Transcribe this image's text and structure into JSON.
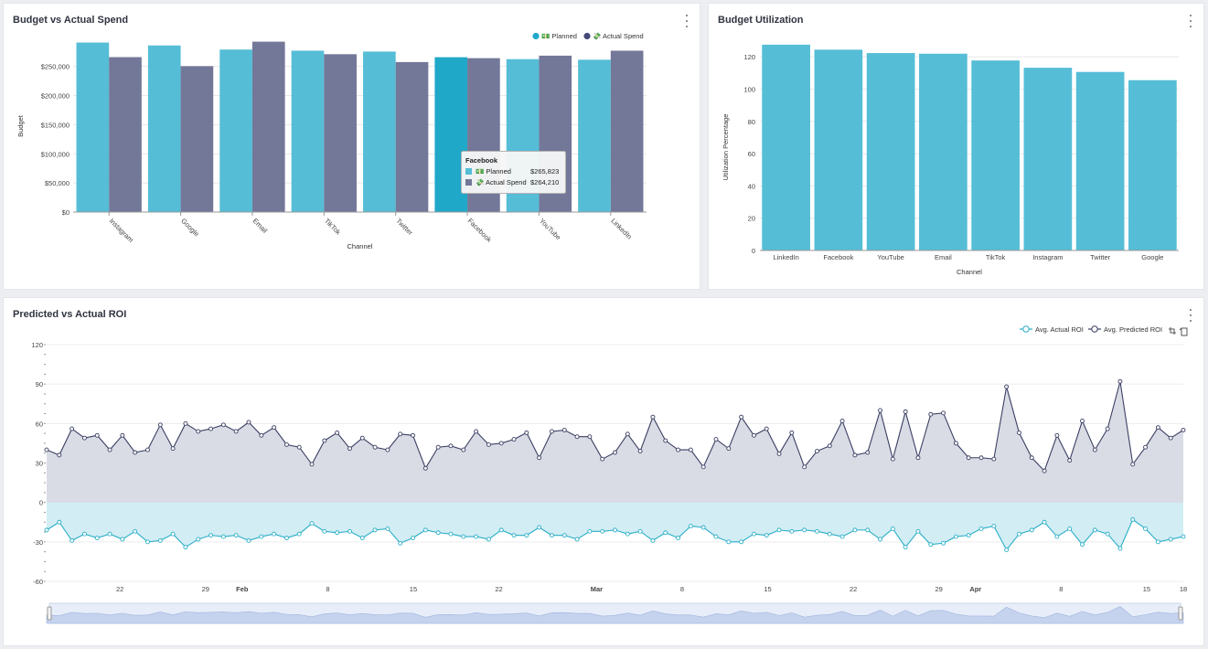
{
  "panels": {
    "budget_vs_actual": {
      "title": "Budget vs Actual Spend"
    },
    "utilization": {
      "title": "Budget Utilization"
    },
    "roi": {
      "title": "Predicted vs Actual ROI"
    }
  },
  "colors": {
    "planned": "#55bdd6",
    "actual": "#737899",
    "planned_highlight": "#20a8c9",
    "predicted_line": "#3b3f63",
    "predicted_fill": "#d8dae4",
    "actual_roi_line": "#2aaec8",
    "actual_roi_fill": "#d2edf3"
  },
  "icons": {
    "planned_legend": "money-icon",
    "actual_legend": "coins-icon",
    "zoom_select": "zoom-select-icon",
    "zoom_reset": "zoom-reset-icon",
    "menu": "kebab-menu-icon"
  },
  "chart_data": [
    {
      "type": "bar",
      "title": "Budget vs Actual Spend",
      "xlabel": "Channel",
      "ylabel": "Budget",
      "categories": [
        "Instagram",
        "Google",
        "Email",
        "TikTok",
        "Twitter",
        "Facebook",
        "YouTube",
        "LinkedIn"
      ],
      "ylim": [
        0,
        295000
      ],
      "yticks": [
        0,
        50000,
        100000,
        150000,
        200000,
        250000
      ],
      "ytick_labels": [
        "$0",
        "$50,000",
        "$100,000",
        "$150,000",
        "$200,000",
        "$250,000"
      ],
      "legend_position": "top-right",
      "series": [
        {
          "name": "Planned",
          "legend_label": "💵 Planned",
          "values": [
            291000,
            286000,
            279000,
            277000,
            275500,
            265823,
            262500,
            261500
          ]
        },
        {
          "name": "Actual Spend",
          "legend_label": "💸 Actual Spend",
          "values": [
            266000,
            250500,
            292500,
            271000,
            257500,
            264210,
            268500,
            277000
          ]
        }
      ],
      "tooltip": {
        "category": "Facebook",
        "rows": [
          {
            "label": "💵 Planned",
            "value": "$265,823"
          },
          {
            "label": "💸 Actual Spend",
            "value": "$264,210"
          }
        ]
      }
    },
    {
      "type": "bar",
      "title": "Budget Utilization",
      "xlabel": "Channel",
      "ylabel": "Utilization Percentage",
      "categories": [
        "LinkedIn",
        "Facebook",
        "YouTube",
        "Email",
        "TikTok",
        "Instagram",
        "Twitter",
        "Google"
      ],
      "values": [
        127.5,
        124.4,
        122.3,
        121.9,
        117.7,
        113.2,
        110.6,
        105.5
      ],
      "ylim": [
        0,
        128
      ],
      "yticks": [
        0,
        20,
        40,
        60,
        80,
        100,
        120
      ],
      "ytick_labels": [
        "0",
        "20",
        "40",
        "60",
        "80",
        "100",
        "120"
      ]
    },
    {
      "type": "area",
      "title": "Predicted vs Actual ROI",
      "ylim": [
        -60,
        120
      ],
      "yticks": [
        -60,
        -30,
        0,
        30,
        60,
        90,
        120
      ],
      "ytick_labels": [
        "-60",
        "-30",
        "0",
        "30",
        "60",
        "90",
        "120"
      ],
      "x_start": "2024-01-16",
      "x_end": "2024-04-18",
      "xticks": [
        {
          "date": "2024-01-22",
          "label": "22",
          "bold": false
        },
        {
          "date": "2024-01-29",
          "label": "29",
          "bold": false
        },
        {
          "date": "2024-02-01",
          "label": "Feb",
          "bold": true
        },
        {
          "date": "2024-02-08",
          "label": "8",
          "bold": false
        },
        {
          "date": "2024-02-15",
          "label": "15",
          "bold": false
        },
        {
          "date": "2024-02-22",
          "label": "22",
          "bold": false
        },
        {
          "date": "2024-03-01",
          "label": "Mar",
          "bold": true
        },
        {
          "date": "2024-03-08",
          "label": "8",
          "bold": false
        },
        {
          "date": "2024-03-15",
          "label": "15",
          "bold": false
        },
        {
          "date": "2024-03-22",
          "label": "22",
          "bold": false
        },
        {
          "date": "2024-03-29",
          "label": "29",
          "bold": false
        },
        {
          "date": "2024-04-01",
          "label": "Apr",
          "bold": true
        },
        {
          "date": "2024-04-08",
          "label": "8",
          "bold": false
        },
        {
          "date": "2024-04-15",
          "label": "15",
          "bold": false
        },
        {
          "date": "2024-04-18",
          "label": "18",
          "bold": false
        }
      ],
      "legend_position": "top-right",
      "series": [
        {
          "name": "Avg. Actual ROI",
          "values": [
            -21,
            -15,
            -29,
            -24,
            -27,
            -24,
            -28,
            -22,
            -30,
            -29,
            -24,
            -34,
            -28,
            -25,
            -26,
            -25,
            -29,
            -26,
            -24,
            -27,
            -24,
            -16,
            -22,
            -23,
            -22,
            -27,
            -21,
            -20,
            -31,
            -27,
            -21,
            -23,
            -24,
            -26,
            -26,
            -28,
            -21,
            -25,
            -25,
            -19,
            -25,
            -25,
            -28,
            -22,
            -22,
            -21,
            -24,
            -22,
            -29,
            -23,
            -27,
            -18,
            -19,
            -26,
            -30,
            -30,
            -24,
            -25,
            -21,
            -22,
            -21,
            -22,
            -24,
            -26,
            -21,
            -21,
            -28,
            -20,
            -34,
            -22,
            -32,
            -31,
            -26,
            -25,
            -20,
            -18,
            -36,
            -24,
            -21,
            -15,
            -26,
            -20,
            -32,
            -21,
            -24,
            -35,
            -13,
            -20,
            -30,
            -28,
            -26
          ],
          "line_color": "#2aaec8"
        },
        {
          "name": "Avg. Predicted ROI",
          "values": [
            40,
            36,
            56,
            49,
            51,
            40,
            51,
            38,
            40,
            59,
            41,
            60,
            54,
            56,
            59,
            54,
            61,
            51,
            57,
            44,
            42,
            29,
            47,
            53,
            41,
            49,
            42,
            40,
            52,
            51,
            26,
            42,
            43,
            40,
            54,
            44,
            45,
            48,
            53,
            34,
            54,
            55,
            50,
            50,
            33,
            38,
            52,
            39,
            65,
            47,
            40,
            40,
            27,
            48,
            41,
            65,
            51,
            56,
            37,
            53,
            27,
            39,
            43,
            62,
            36,
            38,
            70,
            33,
            69,
            34,
            67,
            68,
            45,
            34,
            34,
            33,
            88,
            53,
            34,
            24,
            51,
            32,
            62,
            40,
            56,
            92,
            29,
            42,
            57,
            49,
            55
          ],
          "line_color": "#3b3f63"
        }
      ]
    }
  ]
}
